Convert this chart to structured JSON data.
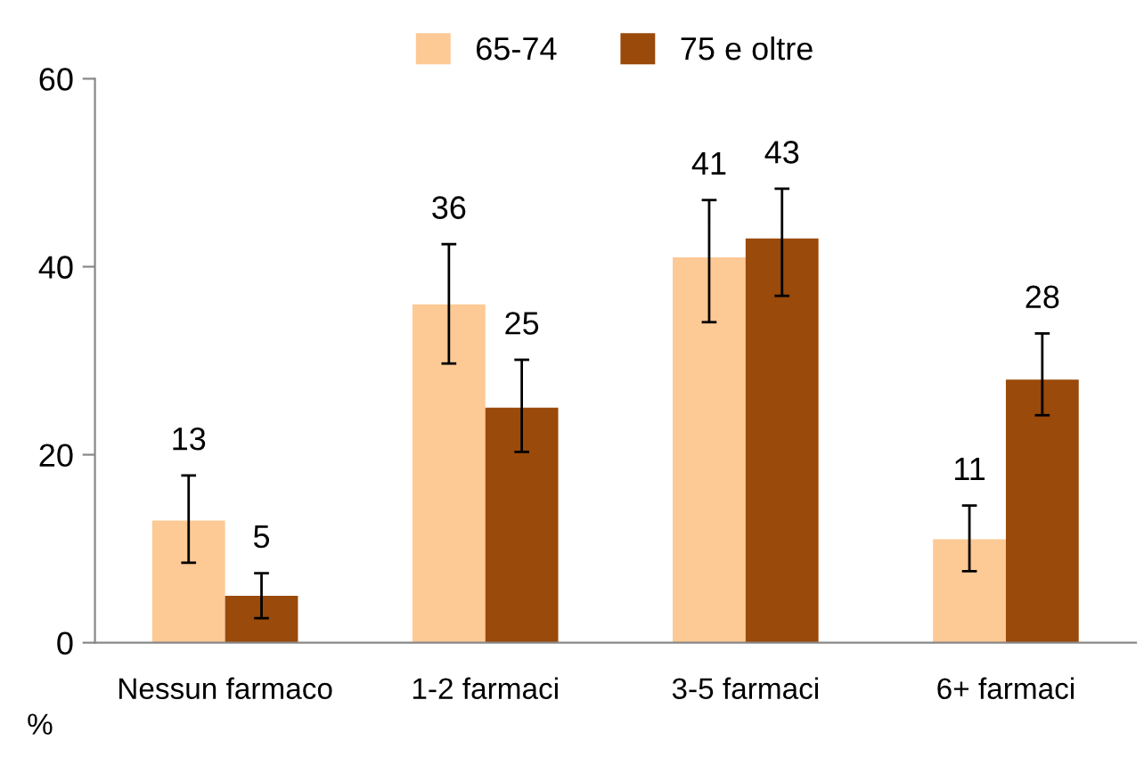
{
  "chart_data": {
    "type": "bar",
    "categories": [
      "Nessun farmaco",
      "1-2 farmaci",
      "3-5 farmaci",
      "6+ farmaci"
    ],
    "series": [
      {
        "name": "65-74",
        "color": "#fdc995",
        "values": [
          13,
          36,
          41,
          11
        ],
        "errors": [
          [
            8.5,
            17.8
          ],
          [
            29.7,
            42.4
          ],
          [
            34.1,
            47.1
          ],
          [
            7.6,
            14.6
          ]
        ]
      },
      {
        "name": "75 e oltre",
        "color": "#9a4a0a",
        "values": [
          5,
          25,
          43,
          28
        ],
        "errors": [
          [
            2.6,
            7.4
          ],
          [
            20.3,
            30.1
          ],
          [
            36.9,
            48.3
          ],
          [
            24.2,
            32.9
          ]
        ]
      }
    ],
    "ylabel": "%",
    "ylim": [
      0,
      60
    ],
    "yticks": [
      0,
      20,
      40,
      60
    ],
    "data_labels": true,
    "legend": "top",
    "grid": false
  }
}
